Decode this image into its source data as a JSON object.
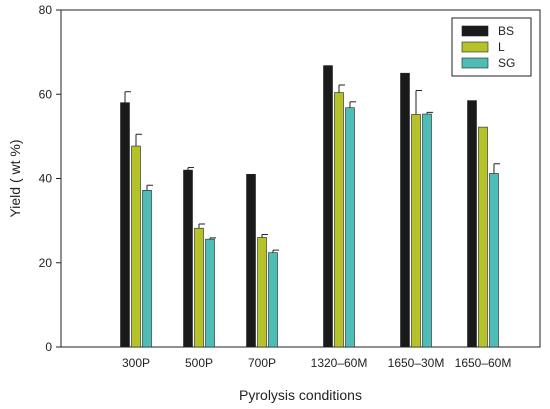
{
  "chart_data": {
    "type": "bar",
    "title": "",
    "xlabel": "Pyrolysis conditions",
    "ylabel": "Yield ( wt %)",
    "ylim": [
      0,
      80
    ],
    "yticks": [
      0,
      20,
      40,
      60,
      80
    ],
    "grid": false,
    "legend_position": "top-right",
    "categories": [
      "300P",
      "500P",
      "700P",
      "1320–60M",
      "1650–30M",
      "1650–60M"
    ],
    "series": [
      {
        "name": "BS",
        "color": "#1a1a1a",
        "values": [
          58.0,
          42.0,
          41.0,
          66.8,
          65.0,
          58.5
        ],
        "errors": [
          2.6,
          0.6,
          0,
          0,
          0,
          0
        ]
      },
      {
        "name": "L",
        "color": "#b5c22a",
        "values": [
          47.7,
          28.2,
          26.0,
          60.4,
          55.2,
          52.2
        ],
        "errors": [
          2.8,
          1.0,
          0.7,
          1.8,
          5.7,
          0
        ]
      },
      {
        "name": "SG",
        "color": "#4dbdb6",
        "values": [
          37.2,
          25.6,
          22.4,
          56.8,
          55.3,
          41.2
        ],
        "errors": [
          1.2,
          0.3,
          0.6,
          1.4,
          0.4,
          2.3
        ]
      }
    ]
  }
}
